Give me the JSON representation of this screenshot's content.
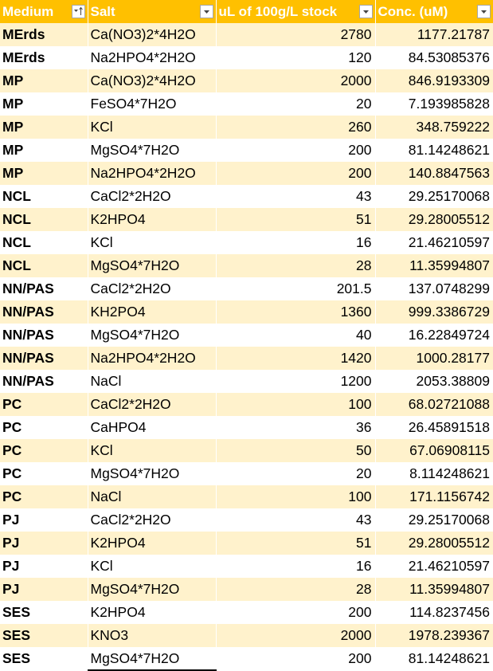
{
  "headers": {
    "medium": "Medium",
    "salt": "Salt",
    "ul_stock": "uL of 100g/L stock",
    "conc": "Conc. (uM)"
  },
  "filter_icons": {
    "medium": "sort-ascending-filter-icon",
    "salt": "dropdown-filter-icon",
    "ul_stock": "dropdown-filter-icon",
    "conc": "dropdown-filter-icon"
  },
  "colors": {
    "header_bg": "#ffc000",
    "band_row_bg": "#fff2cc",
    "plain_row_bg": "#ffffff"
  },
  "rows": [
    {
      "medium": "MErds",
      "salt": "Ca(NO3)2*4H2O",
      "ul": "2780",
      "conc": "1177.21787"
    },
    {
      "medium": "MErds",
      "salt": "Na2HPO4*2H2O",
      "ul": "120",
      "conc": "84.53085376"
    },
    {
      "medium": "MP",
      "salt": "Ca(NO3)2*4H2O",
      "ul": "2000",
      "conc": "846.9193309"
    },
    {
      "medium": "MP",
      "salt": "FeSO4*7H2O",
      "ul": "20",
      "conc": "7.193985828"
    },
    {
      "medium": "MP",
      "salt": "KCl",
      "ul": "260",
      "conc": "348.759222"
    },
    {
      "medium": "MP",
      "salt": "MgSO4*7H2O",
      "ul": "200",
      "conc": "81.14248621"
    },
    {
      "medium": "MP",
      "salt": "Na2HPO4*2H2O",
      "ul": "200",
      "conc": "140.8847563"
    },
    {
      "medium": "NCL",
      "salt": "CaCl2*2H2O",
      "ul": "43",
      "conc": "29.25170068"
    },
    {
      "medium": "NCL",
      "salt": "K2HPO4",
      "ul": "51",
      "conc": "29.28005512"
    },
    {
      "medium": "NCL",
      "salt": "KCl",
      "ul": "16",
      "conc": "21.46210597"
    },
    {
      "medium": "NCL",
      "salt": "MgSO4*7H2O",
      "ul": "28",
      "conc": "11.35994807"
    },
    {
      "medium": "NN/PAS",
      "salt": "CaCl2*2H2O",
      "ul": "201.5",
      "conc": "137.0748299"
    },
    {
      "medium": "NN/PAS",
      "salt": "KH2PO4",
      "ul": "1360",
      "conc": "999.3386729"
    },
    {
      "medium": "NN/PAS",
      "salt": "MgSO4*7H2O",
      "ul": "40",
      "conc": "16.22849724"
    },
    {
      "medium": "NN/PAS",
      "salt": "Na2HPO4*2H2O",
      "ul": "1420",
      "conc": "1000.28177"
    },
    {
      "medium": "NN/PAS",
      "salt": "NaCl",
      "ul": "1200",
      "conc": "2053.38809"
    },
    {
      "medium": "PC",
      "salt": "CaCl2*2H2O",
      "ul": "100",
      "conc": "68.02721088"
    },
    {
      "medium": "PC",
      "salt": "CaHPO4",
      "ul": "36",
      "conc": "26.45891518"
    },
    {
      "medium": "PC",
      "salt": "KCl",
      "ul": "50",
      "conc": "67.06908115"
    },
    {
      "medium": "PC",
      "salt": "MgSO4*7H2O",
      "ul": "20",
      "conc": "8.114248621"
    },
    {
      "medium": "PC",
      "salt": "NaCl",
      "ul": "100",
      "conc": "171.1156742"
    },
    {
      "medium": "PJ",
      "salt": "CaCl2*2H2O",
      "ul": "43",
      "conc": "29.25170068"
    },
    {
      "medium": "PJ",
      "salt": "K2HPO4",
      "ul": "51",
      "conc": "29.28005512"
    },
    {
      "medium": "PJ",
      "salt": "KCl",
      "ul": "16",
      "conc": "21.46210597"
    },
    {
      "medium": "PJ",
      "salt": "MgSO4*7H2O",
      "ul": "28",
      "conc": "11.35994807"
    },
    {
      "medium": "SES",
      "salt": "K2HPO4",
      "ul": "200",
      "conc": "114.8237456"
    },
    {
      "medium": "SES",
      "salt": "KNO3",
      "ul": "2000",
      "conc": "1978.239367"
    },
    {
      "medium": "SES",
      "salt": "MgSO4*7H2O",
      "ul": "200",
      "conc": "81.14248621"
    }
  ]
}
